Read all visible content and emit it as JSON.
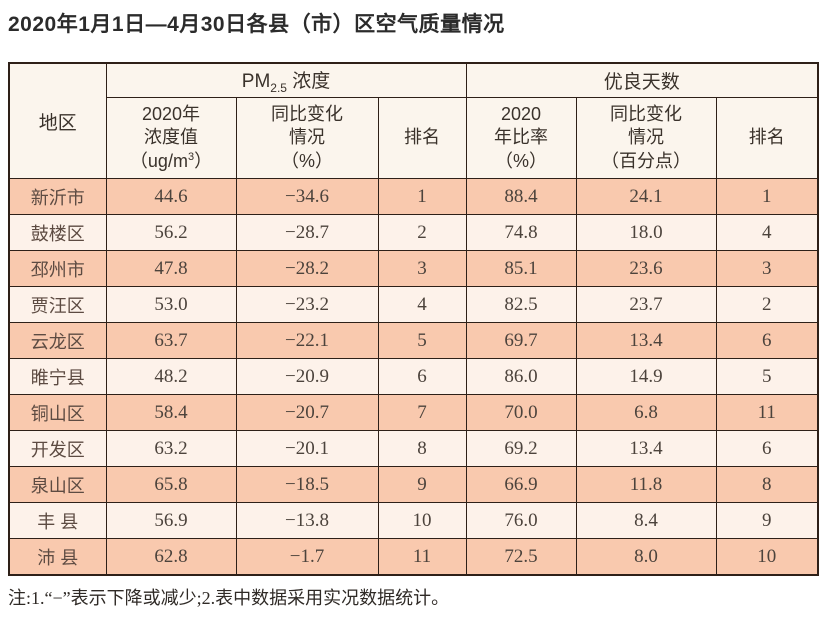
{
  "page": {
    "title": "2020年1月1日—4月30日各县（市）区空气质量情况",
    "note": "注:1.“−”表示下降或减少;2.表中数据采用实况数据统计。"
  },
  "table": {
    "region_header": "地区",
    "pm_group": {
      "prefix": "PM",
      "sub": "2.5",
      "suffix": " 浓度"
    },
    "good_group_label": "优良天数",
    "columns": {
      "pm_value": {
        "line1": "2020年",
        "line2": "浓度值",
        "line3_pre": "（ug/m",
        "line3_sup": "3",
        "line3_post": "）"
      },
      "pm_change": {
        "line1": "同比变化",
        "line2": "情况",
        "line3": "（%）"
      },
      "pm_rank": {
        "label": "排名"
      },
      "good_ratio": {
        "line1": "2020",
        "line2": "年比率",
        "line3": "（%）"
      },
      "good_change": {
        "line1": "同比变化",
        "line2": "情况",
        "line3": "（百分点）"
      },
      "good_rank": {
        "label": "排名"
      }
    },
    "rows": [
      {
        "region": "新沂市",
        "pm_value": "44.6",
        "pm_change": "−34.6",
        "pm_rank": "1",
        "good_ratio": "88.4",
        "good_change": "24.1",
        "good_rank": "1"
      },
      {
        "region": "鼓楼区",
        "pm_value": "56.2",
        "pm_change": "−28.7",
        "pm_rank": "2",
        "good_ratio": "74.8",
        "good_change": "18.0",
        "good_rank": "4"
      },
      {
        "region": "邳州市",
        "pm_value": "47.8",
        "pm_change": "−28.2",
        "pm_rank": "3",
        "good_ratio": "85.1",
        "good_change": "23.6",
        "good_rank": "3"
      },
      {
        "region": "贾汪区",
        "pm_value": "53.0",
        "pm_change": "−23.2",
        "pm_rank": "4",
        "good_ratio": "82.5",
        "good_change": "23.7",
        "good_rank": "2"
      },
      {
        "region": "云龙区",
        "pm_value": "63.7",
        "pm_change": "−22.1",
        "pm_rank": "5",
        "good_ratio": "69.7",
        "good_change": "13.4",
        "good_rank": "6"
      },
      {
        "region": "睢宁县",
        "pm_value": "48.2",
        "pm_change": "−20.9",
        "pm_rank": "6",
        "good_ratio": "86.0",
        "good_change": "14.9",
        "good_rank": "5"
      },
      {
        "region": "铜山区",
        "pm_value": "58.4",
        "pm_change": "−20.7",
        "pm_rank": "7",
        "good_ratio": "70.0",
        "good_change": "6.8",
        "good_rank": "11"
      },
      {
        "region": "开发区",
        "pm_value": "63.2",
        "pm_change": "−20.1",
        "pm_rank": "8",
        "good_ratio": "69.2",
        "good_change": "13.4",
        "good_rank": "6"
      },
      {
        "region": "泉山区",
        "pm_value": "65.8",
        "pm_change": "−18.5",
        "pm_rank": "9",
        "good_ratio": "66.9",
        "good_change": "11.8",
        "good_rank": "8"
      },
      {
        "region": "丰 县",
        "pm_value": "56.9",
        "pm_change": "−13.8",
        "pm_rank": "10",
        "good_ratio": "76.0",
        "good_change": "8.4",
        "good_rank": "9"
      },
      {
        "region": "沛 县",
        "pm_value": "62.8",
        "pm_change": "−1.7",
        "pm_rank": "11",
        "good_ratio": "72.5",
        "good_change": "8.0",
        "good_rank": "10"
      }
    ],
    "colors": {
      "row_odd": "#f9c9ae",
      "row_even": "#fdf2ea",
      "header_bg": "#fbf5ed",
      "border": "#2e2018"
    }
  }
}
